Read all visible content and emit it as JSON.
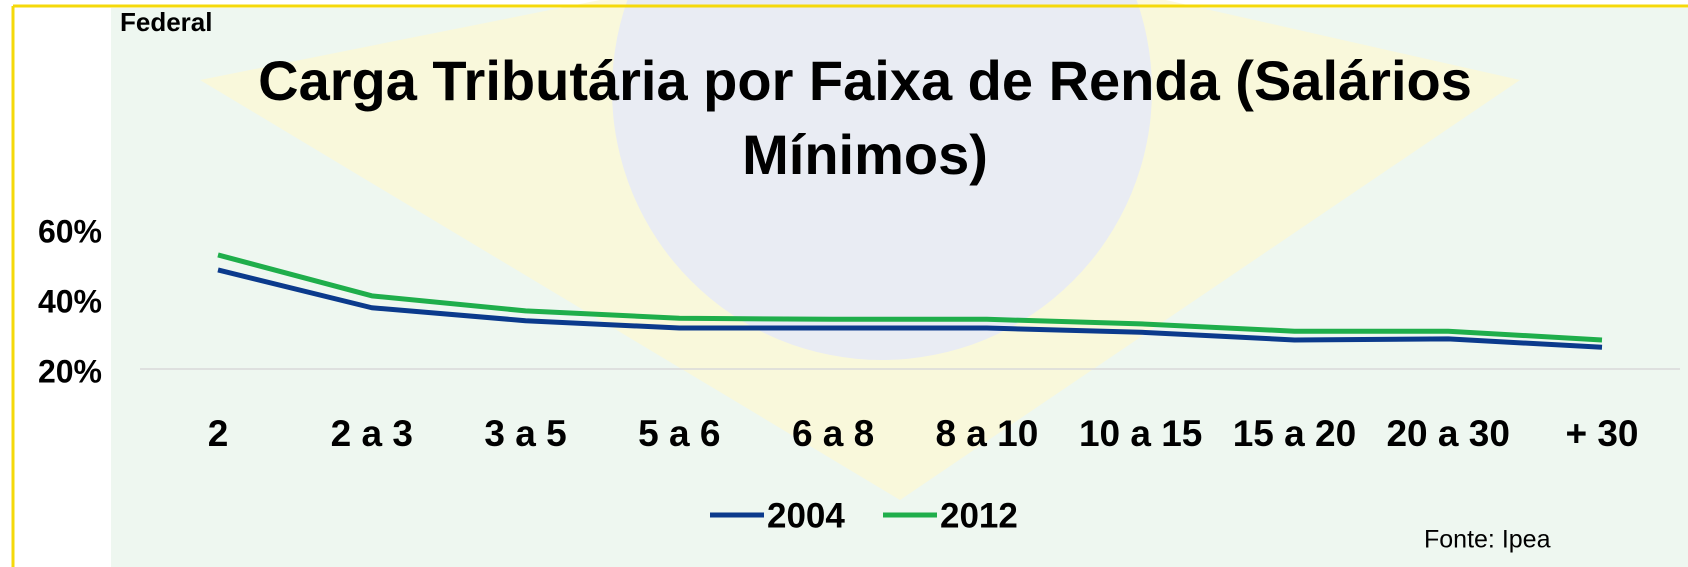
{
  "header": "Federal",
  "chart_data": {
    "type": "line",
    "title": "Carga Tributária por Faixa de Renda  (Salários Mínimos)",
    "categories": [
      "2",
      "2 a 3",
      "3 a 5",
      "5 a 6",
      "6 a 8",
      "8 a 10",
      "10 a 15",
      "15 a 20",
      "20 a 30",
      "+ 30"
    ],
    "series": [
      {
        "name": "2004",
        "color": "#0b3a8c",
        "values": [
          48.3,
          37.5,
          33.8,
          31.7,
          31.7,
          31.7,
          30.5,
          28.3,
          28.6,
          26.2
        ]
      },
      {
        "name": "2012",
        "color": "#1fae4b",
        "values": [
          52.6,
          40.9,
          36.6,
          34.5,
          34.2,
          34.2,
          32.9,
          30.8,
          30.8,
          28.3
        ]
      }
    ],
    "ylim": [
      20,
      60
    ],
    "yticks": [
      {
        "value": 20,
        "label": "20%"
      },
      {
        "value": 40,
        "label": "40%"
      },
      {
        "value": 60,
        "label": "60%"
      }
    ],
    "grid_values": [
      20
    ],
    "legend": "bottom"
  },
  "source": "Fonte: Ipea"
}
